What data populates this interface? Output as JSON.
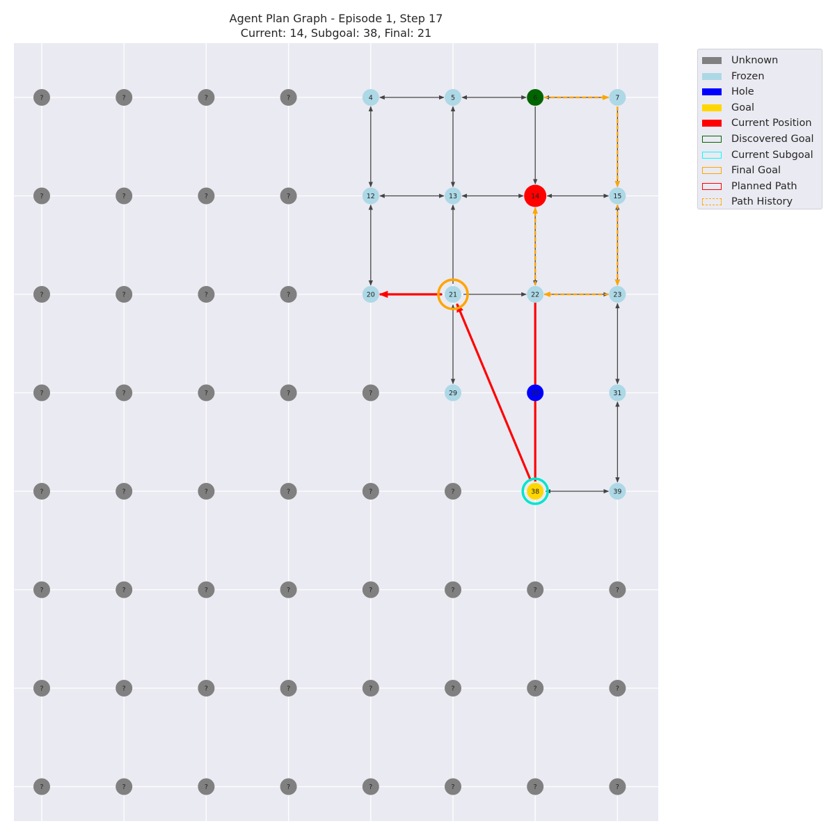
{
  "title": {
    "line1": "Agent Plan Graph - Episode 1, Step 17",
    "line2": "Current: 14, Subgoal: 38, Final: 21"
  },
  "status": {
    "current": 14,
    "subgoal": 38,
    "final": 21
  },
  "grid": {
    "cols": 8,
    "rows": 8
  },
  "unknown_label": "?",
  "colors": {
    "background": "#eaeaf2",
    "unknown": "#808080",
    "frozen": "#add8e6",
    "hole": "#0000ff",
    "goal": "#ffd700",
    "current": "#ff0000",
    "discovered_goal": "#006400",
    "subgoal_ring": "#00e5cc",
    "final_ring": "#ffa500",
    "planned_path": "#ff0000",
    "history": "#ffa500",
    "edge": "#444444"
  },
  "nodes": [
    {
      "id": 4,
      "type": "frozen"
    },
    {
      "id": 5,
      "type": "frozen"
    },
    {
      "id": 6,
      "type": "discovered_goal"
    },
    {
      "id": 7,
      "type": "frozen"
    },
    {
      "id": 12,
      "type": "frozen"
    },
    {
      "id": 13,
      "type": "frozen"
    },
    {
      "id": 14,
      "type": "current"
    },
    {
      "id": 15,
      "type": "frozen"
    },
    {
      "id": 20,
      "type": "frozen"
    },
    {
      "id": 21,
      "type": "frozen"
    },
    {
      "id": 22,
      "type": "frozen"
    },
    {
      "id": 23,
      "type": "frozen"
    },
    {
      "id": 29,
      "type": "frozen"
    },
    {
      "id": 30,
      "type": "hole"
    },
    {
      "id": 31,
      "type": "frozen"
    },
    {
      "id": 38,
      "type": "goal"
    },
    {
      "id": 39,
      "type": "frozen"
    }
  ],
  "edges": [
    {
      "from": 4,
      "to": 5,
      "dir": "both"
    },
    {
      "from": 5,
      "to": 6,
      "dir": "both"
    },
    {
      "from": 6,
      "to": 7,
      "dir": "both"
    },
    {
      "from": 4,
      "to": 12,
      "dir": "both"
    },
    {
      "from": 5,
      "to": 13,
      "dir": "both"
    },
    {
      "from": 6,
      "to": 14,
      "dir": "forward"
    },
    {
      "from": 7,
      "to": 15,
      "dir": "forward"
    },
    {
      "from": 12,
      "to": 13,
      "dir": "both"
    },
    {
      "from": 13,
      "to": 14,
      "dir": "both"
    },
    {
      "from": 14,
      "to": 15,
      "dir": "both"
    },
    {
      "from": 12,
      "to": 20,
      "dir": "both"
    },
    {
      "from": 21,
      "to": 13,
      "dir": "forward"
    },
    {
      "from": 14,
      "to": 22,
      "dir": "both"
    },
    {
      "from": 15,
      "to": 23,
      "dir": "both"
    },
    {
      "from": 21,
      "to": 20,
      "dir": "forward"
    },
    {
      "from": 21,
      "to": 22,
      "dir": "forward"
    },
    {
      "from": 22,
      "to": 23,
      "dir": "both"
    },
    {
      "from": 21,
      "to": 29,
      "dir": "both"
    },
    {
      "from": 23,
      "to": 31,
      "dir": "both"
    },
    {
      "from": 31,
      "to": 39,
      "dir": "both"
    },
    {
      "from": 38,
      "to": 39,
      "dir": "both"
    }
  ],
  "planned_path": [
    38,
    21,
    20
  ],
  "planned_path_extra": [
    [
      22,
      30
    ],
    [
      30,
      38
    ]
  ],
  "path_history": [
    [
      6,
      7
    ],
    [
      7,
      15
    ],
    [
      15,
      23
    ],
    [
      23,
      22
    ],
    [
      22,
      14
    ]
  ],
  "legend": [
    {
      "label": "Unknown",
      "swatch": "fill",
      "color": "#808080"
    },
    {
      "label": "Frozen",
      "swatch": "fill",
      "color": "#add8e6"
    },
    {
      "label": "Hole",
      "swatch": "fill",
      "color": "#0000ff"
    },
    {
      "label": "Goal",
      "swatch": "fill",
      "color": "#ffd700"
    },
    {
      "label": "Current Position",
      "swatch": "fill",
      "color": "#ff0000"
    },
    {
      "label": "Discovered Goal",
      "swatch": "outline",
      "color": "#006400"
    },
    {
      "label": "Current Subgoal",
      "swatch": "outline",
      "color": "#00ffff"
    },
    {
      "label": "Final Goal",
      "swatch": "outline",
      "color": "#ffa500"
    },
    {
      "label": "Planned Path",
      "swatch": "outline",
      "color": "#ff0000"
    },
    {
      "label": "Path History",
      "swatch": "dashed",
      "color": "#ffa500"
    }
  ]
}
